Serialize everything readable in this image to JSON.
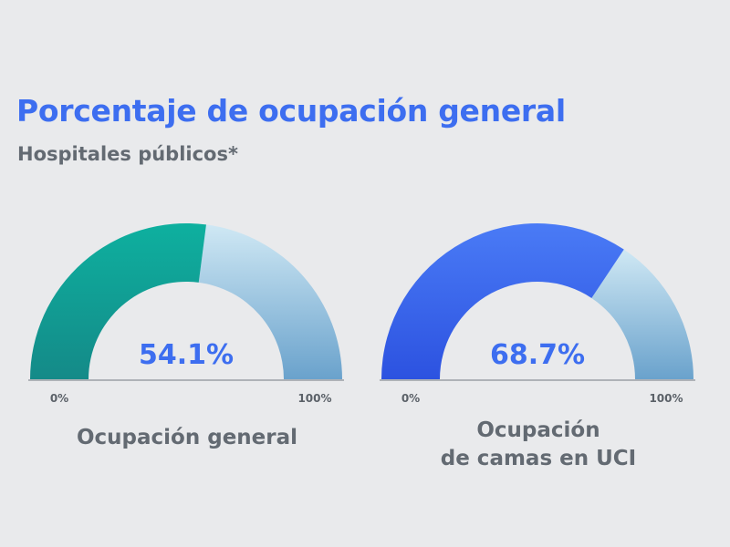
{
  "title": "Porcentaje de ocupación general",
  "subtitle": "Hospitales públicos*",
  "chart_data": {
    "type": "gauge",
    "title": "Porcentaje de ocupación general",
    "subtitle": "Hospitales públicos*",
    "gauges": [
      {
        "value": 54.1,
        "value_label": "54.1%",
        "min": 0,
        "max": 100,
        "min_label": "0%",
        "max_label": "100%",
        "label_lines": [
          "Ocupación general"
        ],
        "fill_colors": [
          "#148a88",
          "#0eb09f"
        ],
        "track_colors": [
          "#cfe8f4",
          "#6aa2cc"
        ]
      },
      {
        "value": 68.7,
        "value_label": "68.7%",
        "min": 0,
        "max": 100,
        "min_label": "0%",
        "max_label": "100%",
        "label_lines": [
          "Ocupación",
          "de camas en UCI"
        ],
        "fill_colors": [
          "#2c52e0",
          "#4a7bf6"
        ],
        "track_colors": [
          "#cfe8f4",
          "#6aa2cc"
        ]
      }
    ]
  }
}
